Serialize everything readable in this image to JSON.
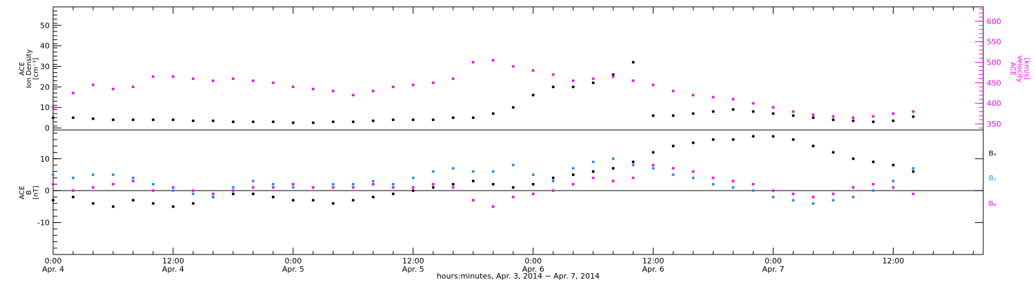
{
  "chart_data": [
    {
      "type": "scatter",
      "panel": "top",
      "ylabel_left": [
        "ACE",
        "Ion Density",
        "[cm⁻³]"
      ],
      "ylabel_right": [
        "ACE",
        "Velocity",
        "[km/s]"
      ],
      "ylim_left": [
        -1,
        59
      ],
      "ylim_right": [
        335,
        635
      ],
      "yticks_left": [
        0,
        10,
        20,
        30,
        40,
        50
      ],
      "yticks_right": [
        350,
        400,
        450,
        500,
        550,
        600
      ],
      "colors": {
        "density": "#000000",
        "velocity": "#ff00ff"
      },
      "series": [
        {
          "name": "",
          "axis": "left",
          "color": "#000000",
          "x": [
            0,
            2,
            4,
            6,
            8,
            10,
            12,
            14,
            16,
            18,
            20,
            22,
            24,
            26,
            28,
            30,
            32,
            34,
            36,
            38,
            40,
            42,
            44,
            46,
            48,
            50,
            52,
            54,
            56,
            58,
            60,
            62,
            64,
            66,
            68,
            70,
            72,
            74,
            76,
            78,
            80,
            82,
            84,
            86
          ],
          "y": [
            5,
            5,
            4.5,
            4,
            4,
            4,
            4,
            3.5,
            3.5,
            3,
            3,
            3,
            2.5,
            2.5,
            3,
            3,
            3.5,
            4,
            4,
            4,
            5,
            5,
            7,
            10,
            16,
            20,
            20,
            22,
            26,
            32,
            6,
            6,
            7,
            8,
            9,
            8,
            7,
            6,
            5,
            4,
            3.5,
            3,
            3.5,
            5.5
          ]
        },
        {
          "name": "",
          "axis": "right",
          "color": "#ff00ff",
          "x": [
            0,
            2,
            4,
            6,
            8,
            10,
            12,
            14,
            16,
            18,
            20,
            22,
            24,
            26,
            28,
            30,
            32,
            34,
            36,
            38,
            40,
            42,
            44,
            46,
            48,
            50,
            52,
            54,
            56,
            58,
            60,
            62,
            64,
            66,
            68,
            70,
            72,
            74,
            76,
            78,
            80,
            82,
            84,
            86
          ],
          "y": [
            390,
            425,
            445,
            435,
            440,
            465,
            465,
            460,
            455,
            460,
            455,
            450,
            440,
            435,
            430,
            420,
            430,
            440,
            445,
            450,
            460,
            500,
            505,
            490,
            480,
            470,
            455,
            460,
            465,
            455,
            445,
            430,
            420,
            415,
            410,
            400,
            390,
            380,
            372,
            368,
            365,
            368,
            375,
            380
          ]
        }
      ]
    },
    {
      "type": "scatter",
      "panel": "bottom",
      "ylabel_left": [
        "ACE",
        "B",
        "[nT]"
      ],
      "ylim": [
        -20,
        19
      ],
      "yticks": [
        -10,
        0,
        10
      ],
      "zero_line": true,
      "legend": [
        "Bₓ",
        "Bᵧ",
        "Bᵩ"
      ],
      "colors": {
        "Bx": "#000000",
        "By": "#1e90ff",
        "Bz": "#ff00ff"
      },
      "series": [
        {
          "name": "Bx",
          "color": "#000000",
          "x": [
            0,
            2,
            4,
            6,
            8,
            10,
            12,
            14,
            16,
            18,
            20,
            22,
            24,
            26,
            28,
            30,
            32,
            34,
            36,
            38,
            40,
            42,
            44,
            46,
            48,
            50,
            52,
            54,
            56,
            58,
            60,
            62,
            64,
            66,
            68,
            70,
            72,
            74,
            76,
            78,
            80,
            82,
            84,
            86
          ],
          "y": [
            -3,
            -2,
            -4,
            -5,
            -3,
            -4,
            -5,
            -4,
            -2,
            -1,
            -1,
            -2,
            -3,
            -3,
            -4,
            -3,
            -2,
            -1,
            0,
            1,
            2,
            3,
            2,
            1,
            2,
            4,
            5,
            6,
            7,
            9,
            12,
            14,
            15,
            16,
            16,
            17,
            17,
            16,
            14,
            12,
            10,
            9,
            8,
            6
          ]
        },
        {
          "name": "By",
          "color": "#1e90ff",
          "x": [
            0,
            2,
            4,
            6,
            8,
            10,
            12,
            14,
            16,
            18,
            20,
            22,
            24,
            26,
            28,
            30,
            32,
            34,
            36,
            38,
            40,
            42,
            44,
            46,
            48,
            50,
            52,
            54,
            56,
            58,
            60,
            62,
            64,
            66,
            68,
            70,
            72,
            74,
            76,
            78,
            80,
            82,
            84,
            86
          ],
          "y": [
            5,
            4,
            5,
            5,
            4,
            2,
            0,
            -1,
            -2,
            1,
            3,
            2,
            1,
            1,
            2,
            2,
            3,
            2,
            4,
            6,
            7,
            6,
            6,
            8,
            5,
            3,
            7,
            9,
            10,
            8,
            7,
            5,
            4,
            2,
            1,
            0,
            -2,
            -3,
            -4,
            -3,
            -2,
            0,
            3,
            7
          ]
        },
        {
          "name": "Bz",
          "color": "#ff00ff",
          "x": [
            0,
            2,
            4,
            6,
            8,
            10,
            12,
            14,
            16,
            18,
            20,
            22,
            24,
            26,
            28,
            30,
            32,
            34,
            36,
            38,
            40,
            42,
            44,
            46,
            48,
            50,
            52,
            54,
            56,
            58,
            60,
            62,
            64,
            66,
            68,
            70,
            72,
            74,
            76,
            78,
            80,
            82,
            84,
            86
          ],
          "y": [
            2,
            0,
            1,
            2,
            3,
            0,
            1,
            0,
            -1,
            0,
            1,
            1,
            2,
            1,
            1,
            1,
            2,
            1,
            1,
            2,
            1,
            -3,
            -5,
            -2,
            -1,
            0,
            2,
            4,
            3,
            4,
            8,
            7,
            6,
            4,
            3,
            2,
            0,
            -1,
            -2,
            -1,
            1,
            2,
            1,
            -1
          ]
        }
      ]
    }
  ],
  "x_axis": {
    "xlim": [
      0,
      93
    ],
    "major_ticks": [
      0,
      12,
      24,
      36,
      48,
      60,
      72,
      84
    ],
    "labels_time": [
      "0:00",
      "12:00",
      "0:00",
      "12:00",
      "0:00",
      "12:00",
      "0:00",
      "12:00"
    ],
    "labels_date": [
      "Apr. 4",
      "Apr. 4",
      "Apr. 5",
      "Apr. 5",
      "Apr. 6",
      "Apr. 6",
      "Apr. 7",
      ""
    ],
    "title": "hours:minutes, Apr.  3, 2014 − Apr.  7, 2014"
  }
}
